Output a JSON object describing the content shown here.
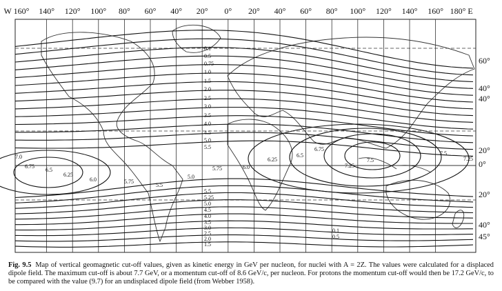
{
  "map": {
    "longitude_labels": [
      "W 160°",
      "140°",
      "120°",
      "100°",
      "80°",
      "60°",
      "40°",
      "20°",
      "0°",
      "20°",
      "40°",
      "60°",
      "80°",
      "100°",
      "120°",
      "140°",
      "160°",
      "180° E"
    ],
    "latitude_labels": [
      "60°",
      "40°",
      "40°",
      "20°",
      "0°",
      "20°",
      "40°",
      "45°"
    ],
    "contour_labels": [
      "0.1",
      "0.5",
      "0.75",
      "1.0",
      "1.5",
      "2.0",
      "2.5",
      "3.0",
      "3.5",
      "4.0",
      "4.5",
      "5.0",
      "5.5",
      "5.5",
      "5.25",
      "5.0",
      "4.5",
      "4.0",
      "3.5",
      "3.0",
      "2.5",
      "2.0",
      "1.5",
      "7.0",
      "6.75",
      "6.5",
      "6.25",
      "6.0",
      "5.75",
      "5.5",
      "5.0",
      "5.75",
      "6.0",
      "6.25",
      "6.5",
      "6.75",
      "7.25",
      "7.5",
      "7.5",
      "7.25",
      "0.1",
      "0.5"
    ]
  },
  "caption": {
    "label": "Fig. 9.5",
    "text": "Map of vertical geomagnetic cut-off values, given as kinetic energy in GeV per nucleon, for nuclei with A = 2Z. The values were calculated for a displaced dipole field. The maximum cut-off is about 7.7 GeV, or a momentum cut-off of 8.6 GeV/c, per nucleon. For protons the momentum cut-off would then be 17.2 GeV/c, to be compared with the value (9.7) for an undisplaced dipole field (from Webber 1958)."
  }
}
